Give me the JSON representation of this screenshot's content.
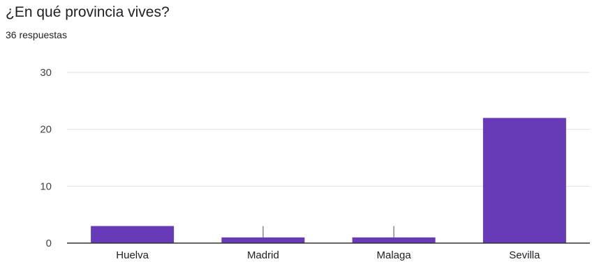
{
  "question": {
    "title": "¿En qué provincia vives?",
    "responses": "36 respuestas"
  },
  "colors": {
    "bar": "#673ab7",
    "grid": "#e0e0e0",
    "axis": "#333333",
    "error_bar": "#888888"
  },
  "chart_data": {
    "type": "bar",
    "title": "",
    "xlabel": "",
    "ylabel": "",
    "categories": [
      "Huelva",
      "Madrid",
      "Malaga",
      "Sevilla"
    ],
    "values": [
      3,
      1,
      1,
      22
    ],
    "ylim": [
      0,
      30
    ],
    "yticks": [
      0,
      10,
      20,
      30
    ],
    "grid": true,
    "legend": "none"
  }
}
